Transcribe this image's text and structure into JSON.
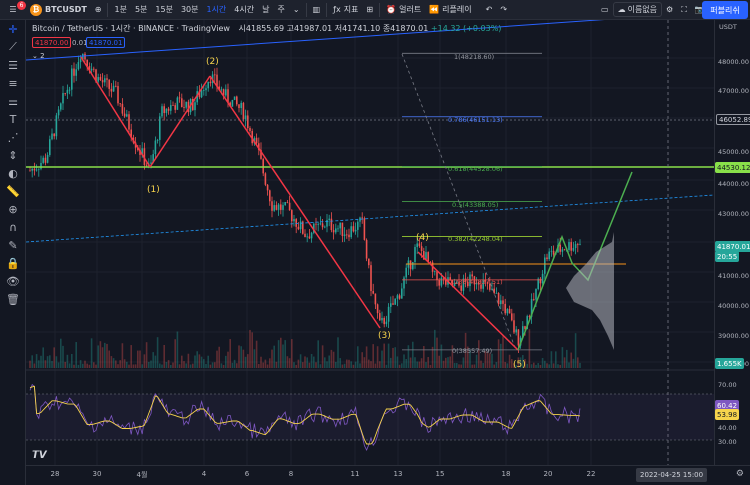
{
  "topbar": {
    "symbol": "BTCUSDT",
    "notif_count": "6",
    "timeframes": [
      "1분",
      "5분",
      "15분",
      "30분",
      "1시간",
      "4시간",
      "날",
      "주"
    ],
    "active_timeframe": "1시간",
    "indicators_label": "지표",
    "alert_label": "얼러트",
    "replay_label": "리플레이",
    "layout_name": "이름없음",
    "publish_label": "퍼블리쉬"
  },
  "legend": {
    "title": "Bitcoin / TetherUS · 1시간 · BINANCE · TradingView",
    "open": "시41855.69",
    "high": "고41987.01",
    "low": "저41741.10",
    "close": "종41870.01",
    "change": "+14.32 (+0.03%)",
    "sell_price": "41870.00",
    "spread": "0.01",
    "buy_price": "41870.01",
    "layers": "2"
  },
  "fib_labels": [
    "1(48218.60)",
    "0.786(46151.13)",
    "0.618(44528.06)",
    "0.5(43388.05)",
    "0.382(42248.04)",
    "0.236(40837.51)",
    "0(38557.49)"
  ],
  "wave_labels": [
    "(1)",
    "(2)",
    "(3)",
    "(4)",
    "(5)"
  ],
  "price_scale": {
    "currency": "USDT",
    "ticks": [
      "48000.00",
      "47000.00",
      "45000.00",
      "44000.00",
      "43000.00",
      "41000.00",
      "40000.00",
      "39000.00",
      "38000.00"
    ],
    "marker_46052": "46052.89",
    "marker_44530": "44530.12",
    "marker_last": "41870.01",
    "marker_countdown": "20:55",
    "marker_volume": "1.655K",
    "rsi_ticks": [
      "70.00",
      "40.00",
      "30.00"
    ],
    "rsi_value": "60.42",
    "rsi_ma": "53.98"
  },
  "time_axis": {
    "ticks": [
      "28",
      "30",
      "4월",
      "4",
      "6",
      "8",
      "11",
      "13",
      "15",
      "18",
      "20",
      "22"
    ],
    "cursor_label": "2022-04-25   15:00"
  },
  "colors": {
    "bg": "#131722",
    "up": "#26a69a",
    "down": "#ef5350",
    "wave_down": "#f23645",
    "wave_up": "#4caf50",
    "resistance": "#89e04a",
    "rsi": "#7e57c2",
    "rsi_ma": "#f7d44c",
    "accent": "#2962ff"
  }
}
